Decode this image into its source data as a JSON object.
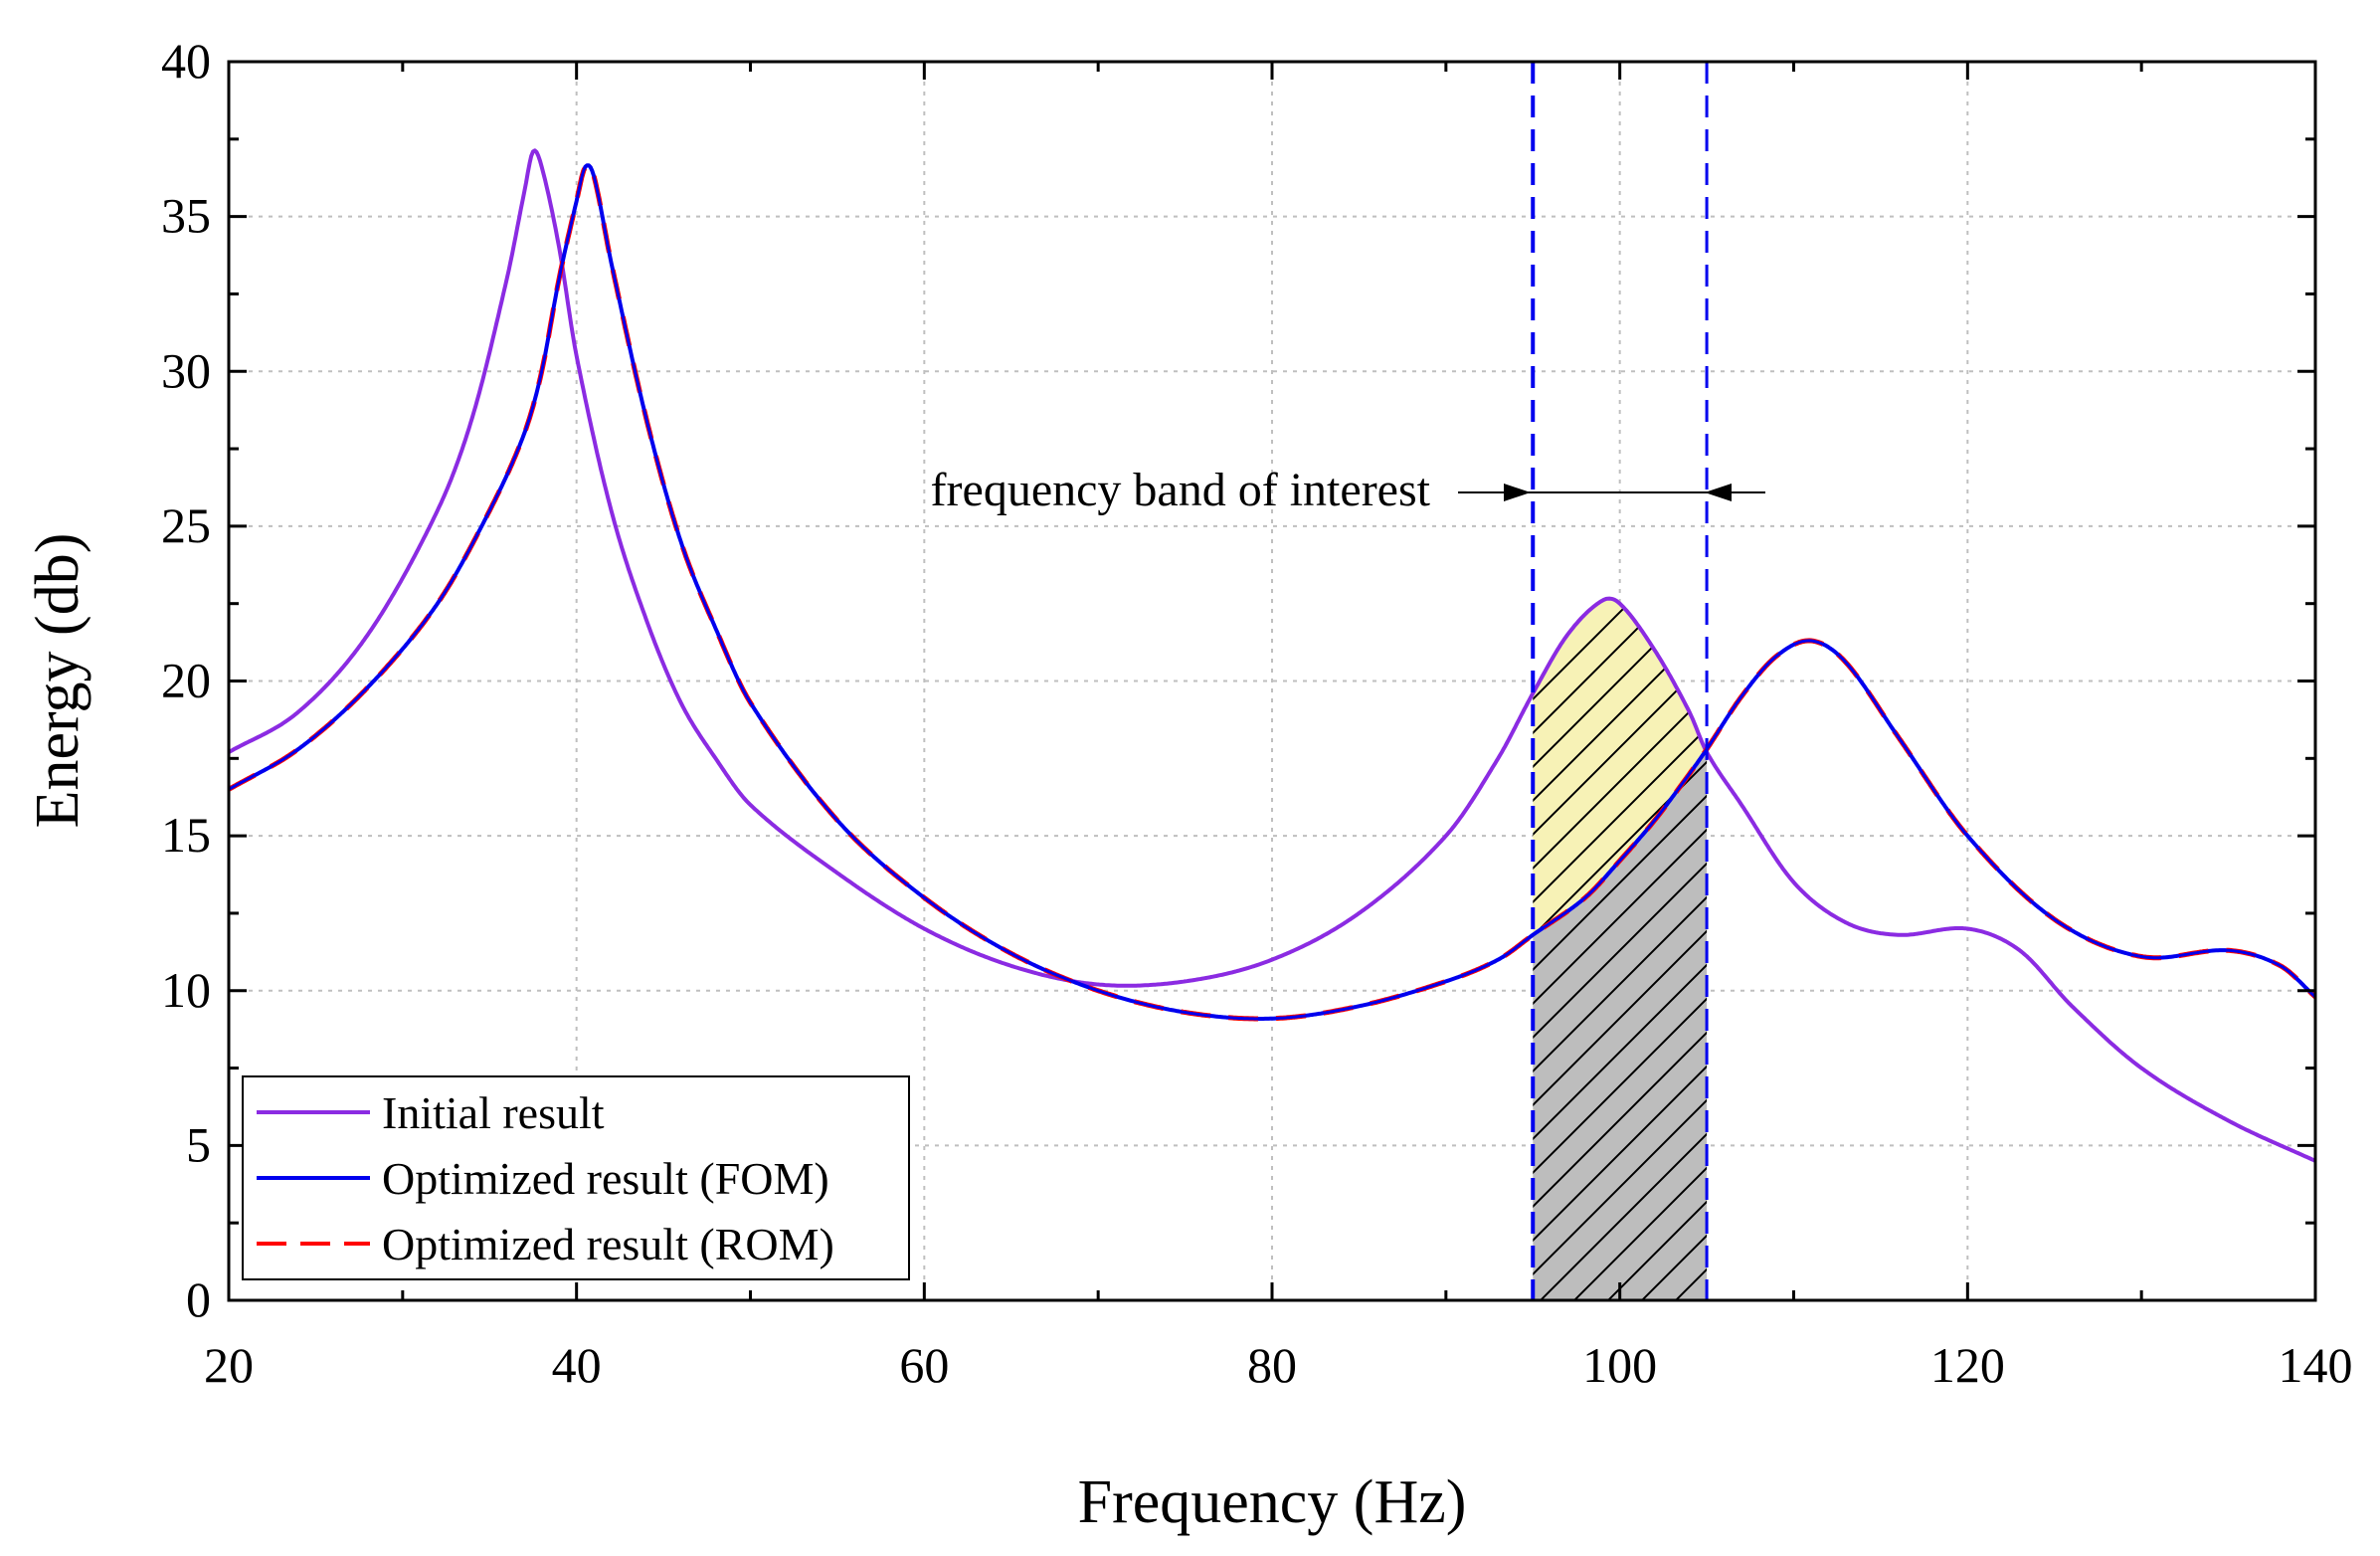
{
  "chart_data": {
    "type": "line",
    "title": "",
    "xlabel": "Frequency (Hz)",
    "ylabel": "Energy (db)",
    "xlim": [
      20,
      140
    ],
    "ylim": [
      0,
      40
    ],
    "x_ticks": [
      20,
      40,
      60,
      80,
      100,
      120,
      140
    ],
    "y_ticks": [
      0,
      5,
      10,
      15,
      20,
      25,
      30,
      35,
      40
    ],
    "x_tick_labels": [
      "20",
      "40",
      "60",
      "80",
      "100",
      "120",
      "140"
    ],
    "y_tick_labels": [
      "0",
      "5",
      "10",
      "15",
      "20",
      "25",
      "30",
      "35",
      "40"
    ],
    "grid": true,
    "legend_position": "bottom-left",
    "series": [
      {
        "name": "Initial result",
        "color": "#8B2BE2",
        "style": "solid",
        "points": [
          [
            20,
            17.7
          ],
          [
            24,
            19.0
          ],
          [
            28,
            21.5
          ],
          [
            32,
            25.5
          ],
          [
            34,
            28.5
          ],
          [
            36,
            33.0
          ],
          [
            37,
            35.8
          ],
          [
            37.5,
            37.1
          ],
          [
            38,
            36.6
          ],
          [
            39,
            34.0
          ],
          [
            40,
            30.5
          ],
          [
            42,
            25.5
          ],
          [
            44,
            22.0
          ],
          [
            46,
            19.3
          ],
          [
            48,
            17.5
          ],
          [
            50,
            16.0
          ],
          [
            55,
            13.8
          ],
          [
            60,
            12.0
          ],
          [
            65,
            10.8
          ],
          [
            70,
            10.2
          ],
          [
            75,
            10.3
          ],
          [
            80,
            11.0
          ],
          [
            85,
            12.5
          ],
          [
            90,
            15.0
          ],
          [
            93,
            17.5
          ],
          [
            95,
            19.6
          ],
          [
            97,
            21.5
          ],
          [
            99,
            22.6
          ],
          [
            100,
            22.5
          ],
          [
            102,
            21.0
          ],
          [
            104,
            19.0
          ],
          [
            105,
            17.7
          ],
          [
            107,
            16.0
          ],
          [
            110,
            13.5
          ],
          [
            113,
            12.2
          ],
          [
            116,
            11.8
          ],
          [
            120,
            12.0
          ],
          [
            123,
            11.3
          ],
          [
            126,
            9.5
          ],
          [
            130,
            7.5
          ],
          [
            135,
            5.8
          ],
          [
            140,
            4.5
          ]
        ]
      },
      {
        "name": "Optimized result (FOM)",
        "color": "#0000EE",
        "style": "solid",
        "points": [
          [
            20,
            16.5
          ],
          [
            24,
            17.8
          ],
          [
            28,
            19.8
          ],
          [
            32,
            22.5
          ],
          [
            35,
            25.5
          ],
          [
            37,
            28.0
          ],
          [
            38,
            30.0
          ],
          [
            39,
            33.0
          ],
          [
            40,
            35.5
          ],
          [
            40.5,
            36.6
          ],
          [
            41,
            36.3
          ],
          [
            42,
            33.5
          ],
          [
            44,
            28.5
          ],
          [
            46,
            24.5
          ],
          [
            48,
            21.7
          ],
          [
            50,
            19.3
          ],
          [
            55,
            15.5
          ],
          [
            60,
            13.0
          ],
          [
            65,
            11.2
          ],
          [
            70,
            10.0
          ],
          [
            75,
            9.3
          ],
          [
            80,
            9.1
          ],
          [
            85,
            9.5
          ],
          [
            90,
            10.3
          ],
          [
            93,
            11.0
          ],
          [
            95,
            11.8
          ],
          [
            98,
            13.0
          ],
          [
            100,
            14.2
          ],
          [
            102,
            15.5
          ],
          [
            104,
            17.0
          ],
          [
            105,
            17.8
          ],
          [
            107,
            19.5
          ],
          [
            109,
            20.8
          ],
          [
            111,
            21.3
          ],
          [
            113,
            20.6
          ],
          [
            116,
            18.2
          ],
          [
            120,
            15.0
          ],
          [
            125,
            12.3
          ],
          [
            130,
            11.1
          ],
          [
            135,
            11.3
          ],
          [
            138,
            10.8
          ],
          [
            140,
            9.8
          ]
        ]
      },
      {
        "name": "Optimized result (ROM)",
        "color": "#FF0000",
        "style": "dashed",
        "points": [
          [
            20,
            16.5
          ],
          [
            24,
            17.8
          ],
          [
            28,
            19.8
          ],
          [
            32,
            22.5
          ],
          [
            35,
            25.5
          ],
          [
            37,
            28.0
          ],
          [
            38,
            30.0
          ],
          [
            39,
            33.0
          ],
          [
            40,
            35.5
          ],
          [
            40.5,
            36.6
          ],
          [
            41,
            36.3
          ],
          [
            42,
            33.5
          ],
          [
            44,
            28.5
          ],
          [
            46,
            24.5
          ],
          [
            48,
            21.7
          ],
          [
            50,
            19.3
          ],
          [
            55,
            15.5
          ],
          [
            60,
            13.0
          ],
          [
            65,
            11.2
          ],
          [
            70,
            10.0
          ],
          [
            75,
            9.3
          ],
          [
            80,
            9.1
          ],
          [
            85,
            9.5
          ],
          [
            90,
            10.3
          ],
          [
            93,
            11.0
          ],
          [
            95,
            11.8
          ],
          [
            98,
            13.0
          ],
          [
            100,
            14.2
          ],
          [
            102,
            15.5
          ],
          [
            104,
            17.0
          ],
          [
            105,
            17.8
          ],
          [
            107,
            19.5
          ],
          [
            109,
            20.8
          ],
          [
            111,
            21.3
          ],
          [
            113,
            20.6
          ],
          [
            116,
            18.2
          ],
          [
            120,
            15.0
          ],
          [
            125,
            12.3
          ],
          [
            130,
            11.1
          ],
          [
            135,
            11.3
          ],
          [
            138,
            10.8
          ],
          [
            140,
            9.8
          ]
        ]
      }
    ],
    "band": {
      "x_min": 95,
      "x_max": 105,
      "line_color": "#0000EE"
    },
    "annotation": {
      "text": "frequency band of interest"
    },
    "colors": {
      "yellow_fill": "#F7F2B6",
      "gray_fill": "#BDBDBD",
      "grid": "#BFBFBF"
    }
  }
}
